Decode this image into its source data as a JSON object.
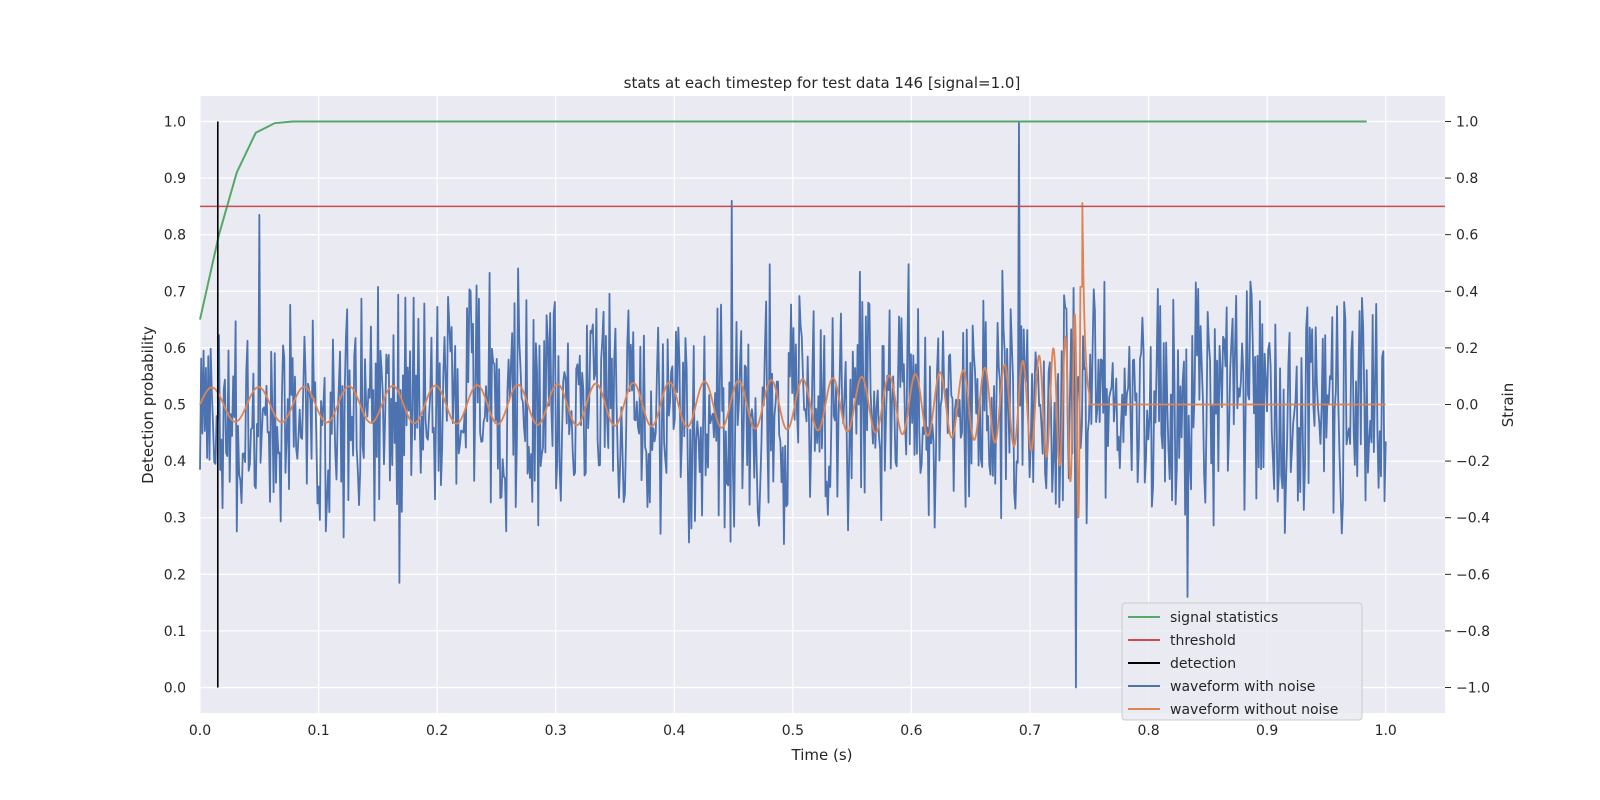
{
  "chart_data": {
    "type": "line",
    "title": "stats at each timestep for test data 146 [signal=1.0]",
    "xlabel": "Time (s)",
    "ylabel": "Detection probability",
    "y2label": "Strain",
    "xlim": [
      0.0,
      1.05
    ],
    "ylim": [
      -0.045,
      1.045
    ],
    "y2lim": [
      -1.09,
      1.09
    ],
    "xticks": [
      "0.0",
      "0.1",
      "0.2",
      "0.3",
      "0.4",
      "0.5",
      "0.6",
      "0.7",
      "0.8",
      "0.9",
      "1.0"
    ],
    "yticks": [
      "0.0",
      "0.1",
      "0.2",
      "0.3",
      "0.4",
      "0.5",
      "0.6",
      "0.7",
      "0.8",
      "0.9",
      "1.0"
    ],
    "y2ticks": [
      "−1.0",
      "−0.8",
      "−0.6",
      "−0.4",
      "−0.2",
      "0.0",
      "0.2",
      "0.4",
      "0.6",
      "0.8",
      "1.0"
    ],
    "grid": true,
    "legend_position": "lower-right",
    "colors": {
      "signal_statistics": "#55a868",
      "threshold": "#c44e52",
      "detection": "#000000",
      "waveform_with_noise": "#4c72b0",
      "waveform_without_noise": "#dd8452",
      "plot_background": "#eaeaf2"
    },
    "legend": [
      "signal statistics",
      "threshold",
      "detection",
      "waveform with noise",
      "waveform without noise"
    ],
    "series": [
      {
        "name": "signal statistics",
        "axis": "left",
        "x": [
          0.0,
          0.016,
          0.031,
          0.047,
          0.063,
          0.078,
          0.094,
          0.2,
          0.4,
          0.6,
          0.8,
          0.984
        ],
        "y": [
          0.65,
          0.8,
          0.91,
          0.98,
          0.997,
          1.0,
          1.0,
          1.0,
          1.0,
          1.0,
          1.0,
          1.0
        ]
      },
      {
        "name": "threshold",
        "axis": "left",
        "x": [
          0.0,
          1.05
        ],
        "y": [
          0.85,
          0.85
        ]
      },
      {
        "name": "detection",
        "axis": "left",
        "x": [
          0.015,
          0.015
        ],
        "y": [
          0.0,
          1.0
        ]
      },
      {
        "name": "waveform with noise",
        "axis": "right",
        "x_range": [
          0.0,
          1.0
        ],
        "n_points": 1000,
        "value_range": [
          -1.0,
          1.0
        ],
        "peaks": [
          {
            "x": 0.691,
            "y": 1.0
          },
          {
            "x": 0.448,
            "y": 0.72
          },
          {
            "x": 0.05,
            "y": 0.67
          },
          {
            "x": 0.739,
            "y": -1.0
          },
          {
            "x": 0.168,
            "y": -0.63
          },
          {
            "x": 0.833,
            "y": -0.68
          }
        ]
      },
      {
        "name": "waveform without noise",
        "axis": "right",
        "x_range": [
          0.0,
          1.0
        ],
        "chirp": {
          "start_amplitude": 0.06,
          "start_frequency_hz": 25,
          "merger_time": 0.744,
          "peak_amplitude": 0.98,
          "ringdown_end": 0.75
        },
        "value_after_merger": 0.0
      }
    ]
  }
}
